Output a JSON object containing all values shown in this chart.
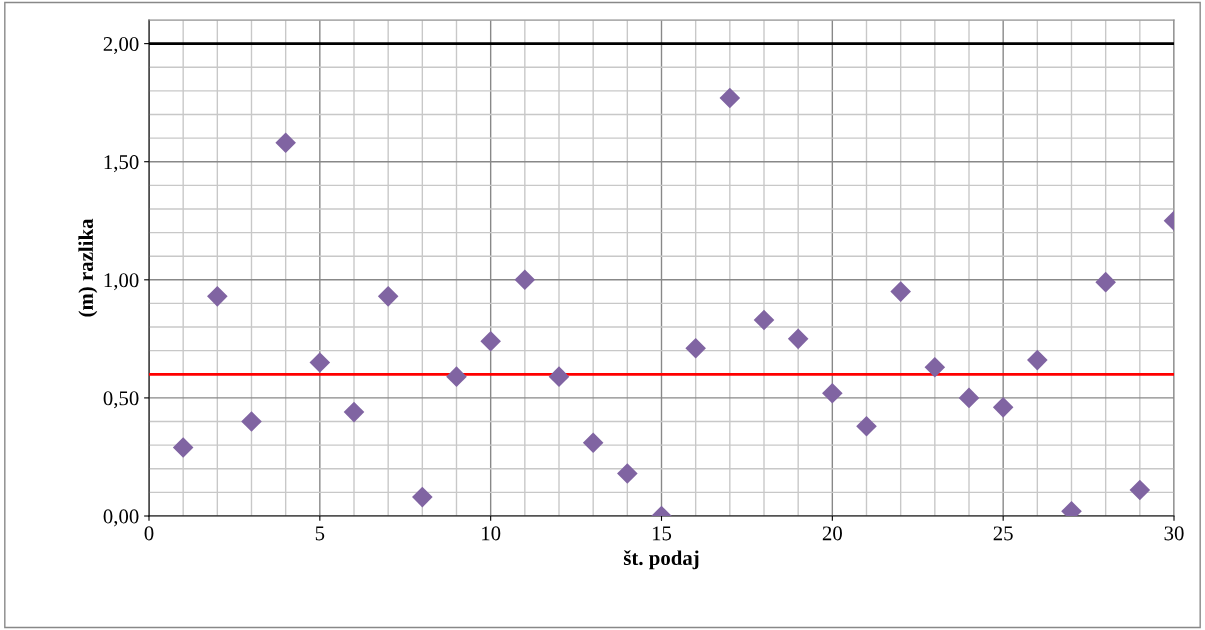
{
  "chart_data": {
    "type": "scatter",
    "xlabel": "št. podaj",
    "ylabel": "(m) razlika",
    "x": [
      1,
      2,
      3,
      4,
      5,
      6,
      7,
      8,
      9,
      10,
      11,
      12,
      13,
      14,
      15,
      16,
      17,
      18,
      19,
      20,
      21,
      22,
      23,
      24,
      25,
      26,
      27,
      28,
      29,
      30
    ],
    "series": [
      {
        "color": "#8064a2",
        "values": [
          0.29,
          0.93,
          0.4,
          1.58,
          0.65,
          0.44,
          0.93,
          0.08,
          0.59,
          0.74,
          1.0,
          0.59,
          0.31,
          0.18,
          0.0,
          0.71,
          1.77,
          0.83,
          0.75,
          0.52,
          0.38,
          0.95,
          0.63,
          0.5,
          0.46,
          0.66,
          0.02,
          0.99,
          0.11,
          1.25
        ]
      }
    ],
    "marker": "diamond",
    "xlim": [
      0,
      30
    ],
    "xticks": [
      0,
      5,
      10,
      15,
      20,
      25,
      30
    ],
    "ylim": [
      0,
      2.1
    ],
    "yticks": [
      {
        "value": 0,
        "label": "0,00"
      },
      {
        "value": 0.5,
        "label": "0,50"
      },
      {
        "value": 1.0,
        "label": "1,00"
      },
      {
        "value": 1.5,
        "label": "1,50"
      },
      {
        "value": 2.0,
        "label": "2,00"
      }
    ],
    "ref_lines": [
      {
        "axis": "y",
        "value": 2.0,
        "color": "#000000"
      },
      {
        "axis": "y",
        "value": 0.6,
        "color": "#ff0000"
      }
    ],
    "grid": true
  }
}
